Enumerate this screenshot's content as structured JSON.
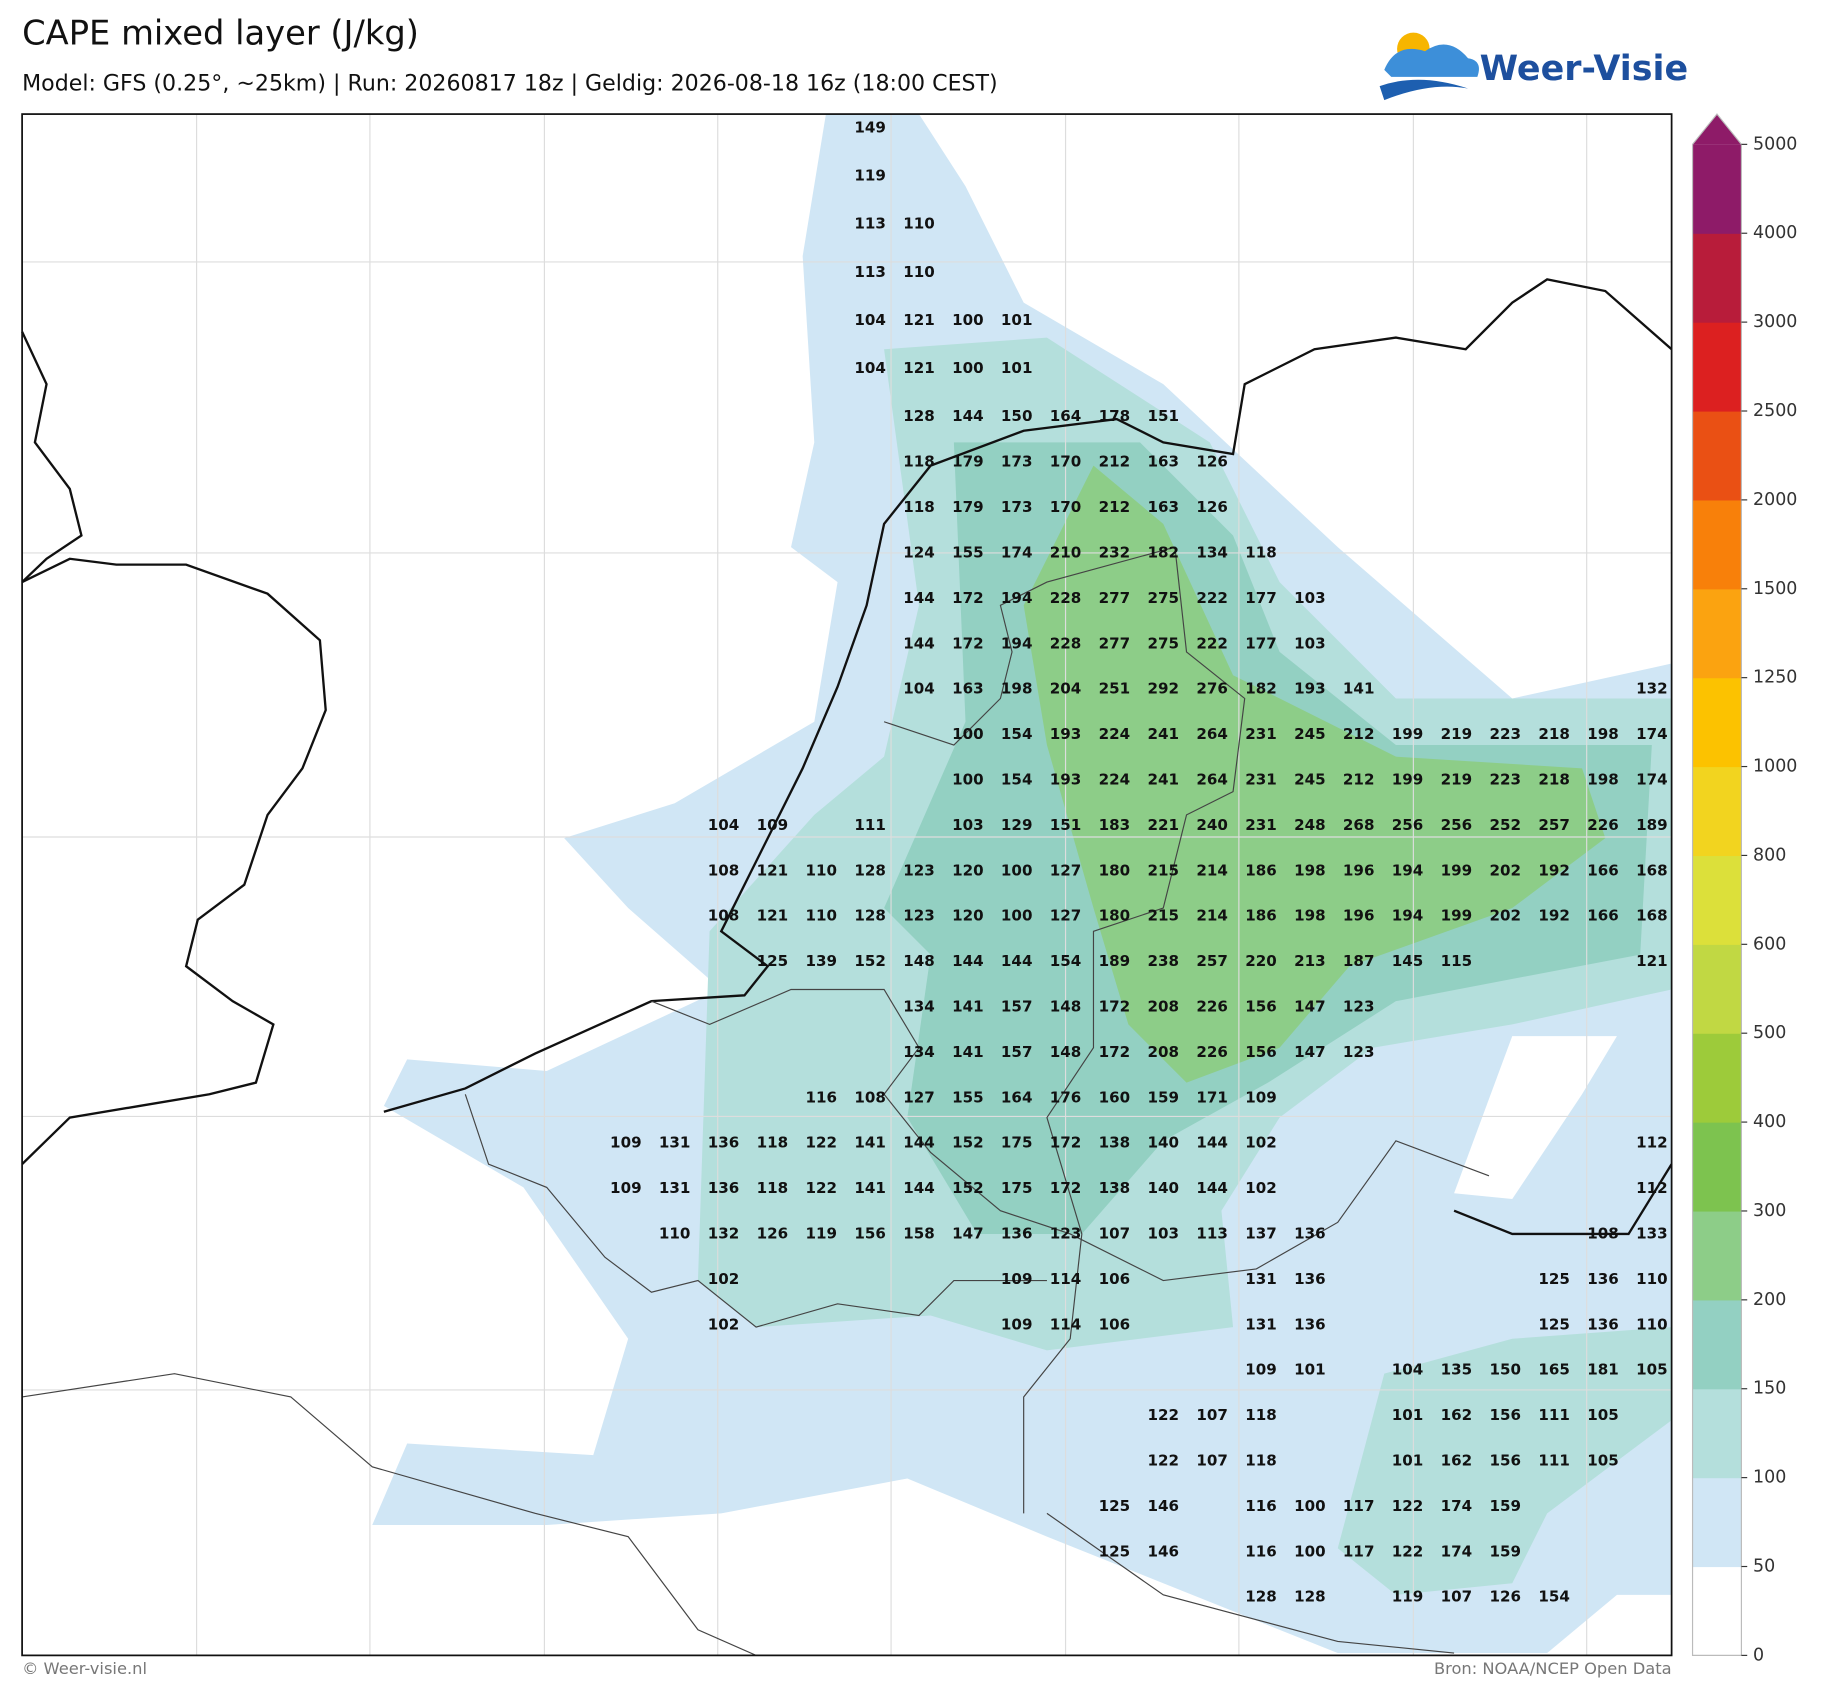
{
  "header": {
    "title": "CAPE mixed layer (J/kg)",
    "subtitle": "Model: GFS (0.25°, ~25km)  |  Run: 20260817 18z  |  Geldig: 2026-08-18 16z (18:00 CEST)",
    "logo": "Weer-Visie"
  },
  "map": {
    "rows": [
      [
        null,
        null,
        null,
        null,
        null,
        149,
        null,
        null,
        null,
        null,
        null,
        null,
        null,
        null,
        null,
        null,
        null,
        null,
        null,
        null,
        null,
        null
      ],
      [
        null,
        null,
        null,
        null,
        null,
        119,
        null,
        null,
        null,
        null,
        null,
        null,
        null,
        null,
        null,
        null,
        null,
        null,
        null,
        null,
        null,
        null
      ],
      [
        null,
        null,
        null,
        null,
        null,
        113,
        110,
        null,
        null,
        null,
        null,
        null,
        null,
        null,
        null,
        null,
        null,
        null,
        null,
        null,
        null,
        null
      ],
      [
        null,
        null,
        null,
        null,
        null,
        113,
        110,
        null,
        null,
        null,
        null,
        null,
        null,
        null,
        null,
        null,
        null,
        null,
        null,
        null,
        null,
        null
      ],
      [
        null,
        null,
        null,
        null,
        null,
        104,
        121,
        100,
        101,
        null,
        null,
        null,
        null,
        null,
        null,
        null,
        null,
        null,
        null,
        null,
        null,
        null
      ],
      [
        null,
        null,
        null,
        null,
        null,
        104,
        121,
        100,
        101,
        null,
        null,
        null,
        null,
        null,
        null,
        null,
        null,
        null,
        null,
        null,
        null,
        null
      ],
      [
        null,
        null,
        null,
        null,
        null,
        null,
        128,
        144,
        150,
        164,
        178,
        151,
        null,
        null,
        null,
        null,
        null,
        null,
        null,
        null,
        null,
        null
      ],
      [
        null,
        null,
        null,
        null,
        null,
        null,
        118,
        179,
        173,
        170,
        212,
        163,
        126,
        null,
        null,
        null,
        null,
        null,
        null,
        null,
        null,
        null
      ],
      [
        null,
        null,
        null,
        null,
        null,
        null,
        118,
        179,
        173,
        170,
        212,
        163,
        126,
        null,
        null,
        null,
        null,
        null,
        null,
        null,
        null,
        null
      ],
      [
        null,
        null,
        null,
        null,
        null,
        null,
        124,
        155,
        174,
        210,
        232,
        182,
        134,
        118,
        null,
        null,
        null,
        null,
        null,
        null,
        null,
        null
      ],
      [
        null,
        null,
        null,
        null,
        null,
        null,
        144,
        172,
        194,
        228,
        277,
        275,
        222,
        177,
        103,
        null,
        null,
        null,
        null,
        null,
        null,
        null
      ],
      [
        null,
        null,
        null,
        null,
        null,
        null,
        144,
        172,
        194,
        228,
        277,
        275,
        222,
        177,
        103,
        null,
        null,
        null,
        null,
        null,
        null,
        null
      ],
      [
        null,
        null,
        null,
        null,
        null,
        null,
        104,
        163,
        198,
        204,
        251,
        292,
        276,
        182,
        193,
        141,
        null,
        null,
        null,
        null,
        null,
        132
      ],
      [
        null,
        null,
        null,
        null,
        null,
        null,
        null,
        100,
        154,
        193,
        224,
        241,
        264,
        231,
        245,
        212,
        199,
        219,
        223,
        218,
        198,
        174
      ],
      [
        null,
        null,
        null,
        null,
        null,
        null,
        null,
        100,
        154,
        193,
        224,
        241,
        264,
        231,
        245,
        212,
        199,
        219,
        223,
        218,
        198,
        174
      ],
      [
        null,
        null,
        104,
        109,
        null,
        111,
        null,
        103,
        129,
        151,
        183,
        221,
        240,
        231,
        248,
        268,
        256,
        256,
        252,
        257,
        226,
        189
      ],
      [
        null,
        null,
        108,
        121,
        110,
        128,
        123,
        120,
        100,
        127,
        180,
        215,
        214,
        186,
        198,
        196,
        194,
        199,
        202,
        192,
        166,
        168
      ],
      [
        null,
        null,
        108,
        121,
        110,
        128,
        123,
        120,
        100,
        127,
        180,
        215,
        214,
        186,
        198,
        196,
        194,
        199,
        202,
        192,
        166,
        168
      ],
      [
        null,
        null,
        null,
        125,
        139,
        152,
        148,
        144,
        144,
        154,
        189,
        238,
        257,
        220,
        213,
        187,
        145,
        115,
        null,
        null,
        null,
        121
      ],
      [
        null,
        null,
        null,
        null,
        null,
        null,
        134,
        141,
        157,
        148,
        172,
        208,
        226,
        156,
        147,
        123,
        null,
        null,
        null,
        null,
        null,
        null
      ],
      [
        null,
        null,
        null,
        null,
        null,
        null,
        134,
        141,
        157,
        148,
        172,
        208,
        226,
        156,
        147,
        123,
        null,
        null,
        null,
        null,
        null,
        null
      ],
      [
        null,
        null,
        null,
        null,
        116,
        108,
        127,
        155,
        164,
        176,
        160,
        159,
        171,
        109,
        null,
        null,
        null,
        null,
        null,
        null,
        null,
        null
      ],
      [
        109,
        131,
        136,
        118,
        122,
        141,
        144,
        152,
        175,
        172,
        138,
        140,
        144,
        102,
        null,
        null,
        null,
        null,
        null,
        null,
        null,
        112
      ],
      [
        109,
        131,
        136,
        118,
        122,
        141,
        144,
        152,
        175,
        172,
        138,
        140,
        144,
        102,
        null,
        null,
        null,
        null,
        null,
        null,
        null,
        112
      ],
      [
        null,
        110,
        132,
        126,
        119,
        156,
        158,
        147,
        136,
        123,
        107,
        103,
        113,
        137,
        136,
        null,
        null,
        null,
        null,
        null,
        108,
        133
      ],
      [
        null,
        null,
        102,
        null,
        null,
        null,
        null,
        null,
        109,
        114,
        106,
        null,
        null,
        131,
        136,
        null,
        null,
        null,
        null,
        125,
        136,
        110
      ],
      [
        null,
        null,
        102,
        null,
        null,
        null,
        null,
        null,
        109,
        114,
        106,
        null,
        null,
        131,
        136,
        null,
        null,
        null,
        null,
        125,
        136,
        110
      ],
      [
        null,
        null,
        null,
        null,
        null,
        null,
        null,
        null,
        null,
        null,
        null,
        null,
        null,
        109,
        101,
        null,
        104,
        135,
        150,
        165,
        181,
        105
      ],
      [
        null,
        null,
        null,
        null,
        null,
        null,
        null,
        null,
        null,
        null,
        null,
        122,
        107,
        118,
        null,
        null,
        101,
        162,
        156,
        111,
        105,
        null
      ],
      [
        null,
        null,
        null,
        null,
        null,
        null,
        null,
        null,
        null,
        null,
        null,
        122,
        107,
        118,
        null,
        null,
        101,
        162,
        156,
        111,
        105,
        null
      ],
      [
        null,
        null,
        null,
        null,
        null,
        null,
        null,
        null,
        null,
        null,
        125,
        146,
        null,
        116,
        100,
        117,
        122,
        174,
        159,
        null,
        null,
        null
      ],
      [
        null,
        null,
        null,
        null,
        null,
        null,
        null,
        null,
        null,
        null,
        125,
        146,
        null,
        116,
        100,
        117,
        122,
        174,
        159,
        null,
        null,
        null
      ],
      [
        null,
        null,
        null,
        null,
        null,
        null,
        null,
        null,
        null,
        null,
        null,
        null,
        null,
        128,
        128,
        null,
        119,
        107,
        126,
        154,
        null,
        null
      ]
    ]
  },
  "colorbar": {
    "ticks": [
      0,
      50,
      100,
      150,
      200,
      300,
      400,
      500,
      600,
      800,
      1000,
      1250,
      1500,
      2000,
      2500,
      3000,
      4000,
      5000
    ],
    "colors": [
      "#ffffff",
      "#d0e6f5",
      "#b4dfdc",
      "#93d0c2",
      "#8dcd88",
      "#7dc34f",
      "#9dcb3a",
      "#c1d843",
      "#dce03a",
      "#f2d41f",
      "#fcc200",
      "#fba310",
      "#f8800a",
      "#ea5014",
      "#dc2020",
      "#b81c3a",
      "#8e1b68"
    ]
  },
  "footer": {
    "left": "© Weer-visie.nl",
    "right": "Bron: NOAA/NCEP Open Data"
  }
}
